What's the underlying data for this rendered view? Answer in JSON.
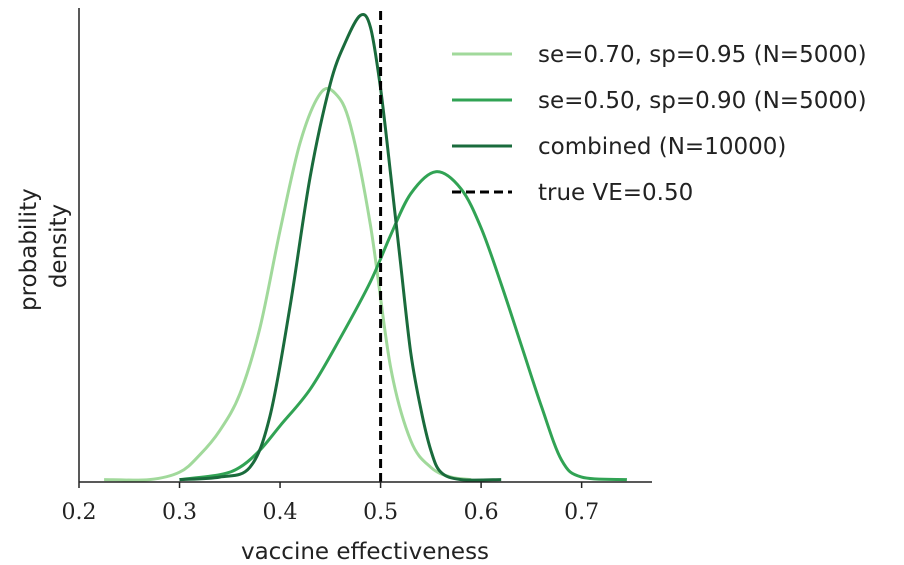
{
  "chart_data": {
    "type": "line",
    "xlabel": "vaccine effectiveness",
    "ylabel": "probability density",
    "ylabel_lines": [
      "probability",
      "density"
    ],
    "xlim": [
      0.2,
      0.77
    ],
    "ylim": [
      0,
      19.4
    ],
    "y_ticks_shown": false,
    "x_ticks": [
      0.2,
      0.3,
      0.4,
      0.5,
      0.6,
      0.7
    ],
    "x_tick_labels": [
      "0.2",
      "0.3",
      "0.4",
      "0.5",
      "0.6",
      "0.7"
    ],
    "grid": false,
    "legend_position": "top-right",
    "series": [
      {
        "name": "se=0.70, sp=0.95 (N=5000)",
        "color": "#a1d99b",
        "style": "solid",
        "x": [
          0.225,
          0.27,
          0.3,
          0.32,
          0.34,
          0.36,
          0.38,
          0.4,
          0.42,
          0.44,
          0.455,
          0.47,
          0.49,
          0.51,
          0.53,
          0.55,
          0.57,
          0.59
        ],
        "y": [
          0.1,
          0.1,
          0.4,
          1.1,
          2.1,
          3.6,
          6.3,
          10.3,
          13.9,
          15.9,
          15.9,
          14.6,
          10.5,
          4.7,
          1.7,
          0.6,
          0.2,
          0.1
        ]
      },
      {
        "name": "se=0.50, sp=0.90 (N=5000)",
        "color": "#31a354",
        "style": "solid",
        "x": [
          0.3,
          0.34,
          0.36,
          0.38,
          0.4,
          0.43,
          0.46,
          0.49,
          0.51,
          0.53,
          0.555,
          0.58,
          0.6,
          0.62,
          0.64,
          0.66,
          0.68,
          0.7,
          0.745
        ],
        "y": [
          0.1,
          0.3,
          0.6,
          1.3,
          2.3,
          3.8,
          5.9,
          8.2,
          10.1,
          11.8,
          12.7,
          12.0,
          10.4,
          8.1,
          5.6,
          3.1,
          0.9,
          0.2,
          0.1
        ]
      },
      {
        "name": "combined (N=10000)",
        "color": "#1a6b3c",
        "style": "solid",
        "x": [
          0.3,
          0.34,
          0.37,
          0.39,
          0.41,
          0.43,
          0.45,
          0.465,
          0.48,
          0.49,
          0.5,
          0.51,
          0.52,
          0.53,
          0.54,
          0.55,
          0.56,
          0.58,
          0.62
        ],
        "y": [
          0.1,
          0.2,
          0.6,
          2.7,
          7.2,
          12.5,
          16.3,
          18.0,
          19.1,
          18.6,
          16.1,
          12.6,
          8.9,
          5.3,
          3.0,
          1.3,
          0.4,
          0.1,
          0.1
        ]
      },
      {
        "name": "true VE=0.50",
        "color": "#000000",
        "style": "dashed",
        "x": [
          0.5,
          0.5
        ],
        "y": [
          0,
          19.4
        ]
      }
    ]
  }
}
